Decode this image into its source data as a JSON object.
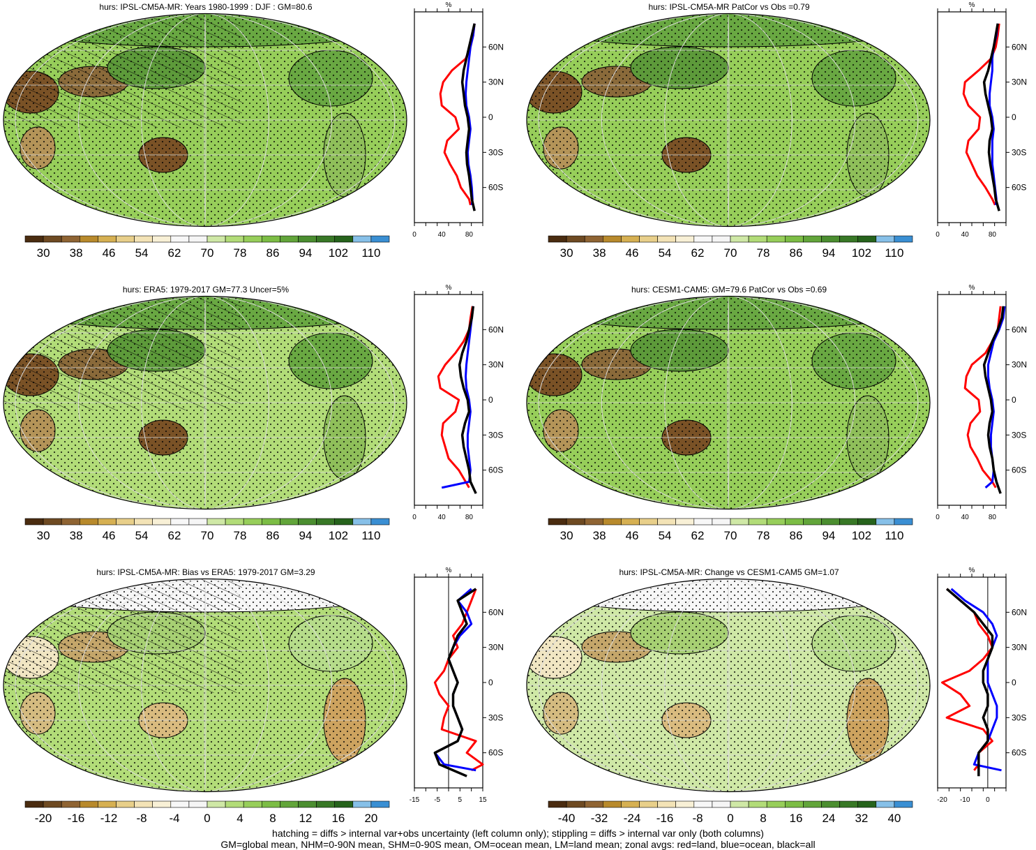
{
  "colors": {
    "abs_scale": [
      "#4a2c10",
      "#6e4a22",
      "#8f6433",
      "#b88a2c",
      "#d6b052",
      "#e8cf8a",
      "#f3e3b6",
      "#f8f0d6",
      "#f7f7f7",
      "#f5f5f5",
      "#cfe8a6",
      "#b2dc78",
      "#97ce5a",
      "#7cbd45",
      "#62a53a",
      "#4b8e30",
      "#387826",
      "#26631c",
      "#87c0e8",
      "#3a8fd3"
    ],
    "diff_scale": [
      "#4a2c10",
      "#6e4a22",
      "#8f6433",
      "#b88a2c",
      "#d6b052",
      "#e8cf8a",
      "#f3e3b6",
      "#f8f0d6",
      "#f7f7f7",
      "#f5f5f5",
      "#cfe8a6",
      "#b2dc78",
      "#97ce5a",
      "#7cbd45",
      "#62a53a",
      "#4b8e30",
      "#387826",
      "#26631c",
      "#87c0e8",
      "#3a8fd3"
    ],
    "land": "#ff0000",
    "ocean": "#0000ff",
    "all": "#000000"
  },
  "footer": {
    "line1": "hatching = diffs > internal var+obs uncertainty (left column only); stippling = diffs > internal var only (both columns)",
    "line2": "GM=global mean, NHM=0-90N mean, SHM=0-90S mean, OM=ocean mean, LM=land mean; zonal avgs: red=land, blue=ocean, black=all"
  },
  "chart_data": [
    {
      "type": "heatmap",
      "title": "hurs: IPSL-CM5A-MR: Years 1980-1999 : DJF : GM=80.6",
      "colorbar_ticks": [
        "30",
        "38",
        "46",
        "54",
        "62",
        "70",
        "78",
        "86",
        "94",
        "102",
        "110"
      ],
      "colorbar_range": [
        26,
        114
      ],
      "map_base": 80,
      "zonal": {
        "unit": "%",
        "xlim": [
          0,
          100
        ],
        "xticks": [
          "0",
          "40",
          "80"
        ],
        "lat_ticks": [
          "60N",
          "30N",
          "0",
          "30S",
          "60S"
        ],
        "series": [
          {
            "color": "land",
            "lat": [
              80,
              70,
              60,
              50,
              40,
              30,
              20,
              10,
              0,
              -10,
              -20,
              -30,
              -40,
              -50,
              -60,
              -70,
              -75
            ],
            "values": [
              88,
              86,
              82,
              75,
              55,
              42,
              38,
              40,
              60,
              65,
              48,
              44,
              52,
              62,
              68,
              80,
              82
            ]
          },
          {
            "color": "ocean",
            "lat": [
              80,
              70,
              60,
              50,
              40,
              30,
              20,
              10,
              0,
              -10,
              -20,
              -30,
              -40,
              -50,
              -60,
              -70,
              -75
            ],
            "values": [
              88,
              86,
              82,
              80,
              78,
              76,
              75,
              76,
              80,
              82,
              80,
              78,
              79,
              82,
              84,
              85,
              84
            ]
          },
          {
            "color": "all",
            "lat": [
              80,
              70,
              60,
              50,
              40,
              30,
              20,
              10,
              0,
              -10,
              -20,
              -30,
              -40,
              -50,
              -60,
              -70,
              -80
            ],
            "values": [
              88,
              84,
              80,
              76,
              72,
              70,
              72,
              74,
              78,
              80,
              78,
              76,
              77,
              80,
              82,
              84,
              88
            ]
          }
        ]
      }
    },
    {
      "type": "heatmap",
      "title": "hurs: IPSL-CM5A-MR PatCor vs Obs =0.79",
      "colorbar_ticks": [
        "30",
        "38",
        "46",
        "54",
        "62",
        "70",
        "78",
        "86",
        "94",
        "102",
        "110"
      ],
      "colorbar_range": [
        26,
        114
      ],
      "map_base": 80,
      "zonal": {
        "unit": "%",
        "xlim": [
          0,
          100
        ],
        "xticks": [
          "0",
          "40",
          "80"
        ],
        "lat_ticks": [
          "60N",
          "30N",
          "0",
          "30S",
          "60S"
        ],
        "series": [
          {
            "color": "land",
            "lat": [
              80,
              70,
              60,
              50,
              40,
              30,
              20,
              10,
              0,
              -10,
              -20,
              -30,
              -40,
              -50,
              -60,
              -70,
              -75
            ],
            "values": [
              90,
              88,
              85,
              78,
              60,
              40,
              38,
              45,
              62,
              60,
              45,
              42,
              50,
              58,
              70,
              80,
              84
            ]
          },
          {
            "color": "ocean",
            "lat": [
              80,
              70,
              60,
              50,
              40,
              30,
              20,
              10,
              0,
              -10,
              -20,
              -30,
              -40,
              -50,
              -60,
              -70,
              -75
            ],
            "values": [
              88,
              86,
              82,
              80,
              80,
              78,
              76,
              76,
              80,
              82,
              80,
              80,
              80,
              82,
              84,
              86,
              85
            ]
          },
          {
            "color": "all",
            "lat": [
              80,
              70,
              60,
              50,
              40,
              30,
              20,
              10,
              0,
              -10,
              -20,
              -30,
              -40,
              -50,
              -60,
              -70,
              -80
            ],
            "values": [
              88,
              85,
              82,
              78,
              74,
              68,
              70,
              74,
              78,
              80,
              76,
              75,
              77,
              80,
              83,
              85,
              90
            ]
          }
        ]
      }
    },
    {
      "type": "heatmap",
      "title": "hurs: ERA5: 1979-2017 GM=77.3 Uncer=5%",
      "colorbar_ticks": [
        "30",
        "38",
        "46",
        "54",
        "62",
        "70",
        "78",
        "86",
        "94",
        "102",
        "110"
      ],
      "colorbar_range": [
        26,
        114
      ],
      "map_base": 77,
      "zonal": {
        "unit": "%",
        "xlim": [
          0,
          100
        ],
        "xticks": [
          "0",
          "40",
          "80"
        ],
        "lat_ticks": [
          "60N",
          "30N",
          "0",
          "30S",
          "60S"
        ],
        "series": [
          {
            "color": "land",
            "lat": [
              80,
              70,
              60,
              50,
              40,
              30,
              20,
              10,
              0,
              -10,
              -20,
              -30,
              -40,
              -50,
              -60,
              -70,
              -75
            ],
            "values": [
              85,
              82,
              80,
              72,
              60,
              45,
              35,
              38,
              65,
              60,
              42,
              40,
              45,
              50,
              65,
              75,
              80
            ]
          },
          {
            "color": "ocean",
            "lat": [
              80,
              70,
              60,
              50,
              40,
              30,
              20,
              10,
              0,
              -10,
              -20,
              -30,
              -40,
              -50,
              -60,
              -70,
              -75
            ],
            "values": [
              86,
              84,
              82,
              80,
              78,
              76,
              75,
              76,
              80,
              82,
              80,
              78,
              78,
              80,
              82,
              80,
              40
            ]
          },
          {
            "color": "all",
            "lat": [
              80,
              70,
              60,
              50,
              40,
              30,
              20,
              10,
              0,
              -10,
              -20,
              -30,
              -40,
              -50,
              -60,
              -70,
              -80
            ],
            "values": [
              86,
              84,
              80,
              76,
              70,
              66,
              68,
              72,
              78,
              80,
              74,
              70,
              72,
              76,
              80,
              82,
              90
            ]
          }
        ]
      }
    },
    {
      "type": "heatmap",
      "title": "hurs: CESM1-CAM5: GM=79.6 PatCor vs Obs =0.69",
      "colorbar_ticks": [
        "30",
        "38",
        "46",
        "54",
        "62",
        "70",
        "78",
        "86",
        "94",
        "102",
        "110"
      ],
      "colorbar_range": [
        26,
        114
      ],
      "map_base": 80,
      "zonal": {
        "unit": "%",
        "xlim": [
          0,
          100
        ],
        "xticks": [
          "0",
          "40",
          "80"
        ],
        "lat_ticks": [
          "60N",
          "30N",
          "0",
          "30S",
          "60S"
        ],
        "series": [
          {
            "color": "land",
            "lat": [
              80,
              70,
              60,
              50,
              40,
              30,
              20,
              10,
              0,
              -10,
              -20,
              -30,
              -40,
              -50,
              -60,
              -70,
              -75
            ],
            "values": [
              92,
              90,
              88,
              80,
              70,
              50,
              42,
              40,
              60,
              62,
              48,
              44,
              48,
              58,
              66,
              80,
              85
            ]
          },
          {
            "color": "ocean",
            "lat": [
              80,
              70,
              60,
              50,
              40,
              30,
              20,
              10,
              0,
              -10,
              -20,
              -30,
              -40,
              -50,
              -60,
              -70,
              -75
            ],
            "values": [
              98,
              96,
              90,
              82,
              78,
              74,
              74,
              76,
              80,
              82,
              80,
              78,
              78,
              80,
              82,
              80,
              70
            ]
          },
          {
            "color": "all",
            "lat": [
              80,
              70,
              60,
              50,
              40,
              30,
              20,
              10,
              0,
              -10,
              -20,
              -30,
              -40,
              -50,
              -60,
              -70,
              -80
            ],
            "values": [
              96,
              94,
              88,
              80,
              74,
              68,
              70,
              74,
              78,
              80,
              76,
              74,
              76,
              80,
              82,
              86,
              92
            ]
          }
        ]
      }
    },
    {
      "type": "heatmap",
      "title": "hurs: IPSL-CM5A-MR: Bias vs ERA5: 1979-2017 GM=3.29",
      "colorbar_ticks": [
        "-20",
        "-16",
        "-12",
        "-8",
        "-4",
        "0",
        "4",
        "8",
        "12",
        "16",
        "20"
      ],
      "colorbar_range": [
        -22,
        22
      ],
      "map_base": 3,
      "zonal": {
        "unit": "%",
        "xlim": [
          -15,
          15
        ],
        "xticks": [
          "-15",
          "-5",
          "5",
          "15"
        ],
        "lat_ticks": [
          "60N",
          "30N",
          "0",
          "30S",
          "60S"
        ],
        "series": [
          {
            "color": "land",
            "lat": [
              80,
              70,
              60,
              50,
              40,
              30,
              20,
              10,
              0,
              -10,
              -20,
              -30,
              -40,
              -50,
              -60,
              -70,
              -75
            ],
            "values": [
              12,
              10,
              8,
              6,
              2,
              4,
              0,
              -2,
              -6,
              -4,
              0,
              -2,
              -3,
              12,
              8,
              15,
              10
            ]
          },
          {
            "color": "ocean",
            "lat": [
              80,
              70,
              60,
              50,
              40,
              30,
              20,
              10,
              0,
              -10,
              -20,
              -30,
              -40,
              -50,
              -60,
              -70,
              -75
            ],
            "values": [
              10,
              4,
              8,
              10,
              5,
              2,
              0,
              2,
              4,
              2,
              2,
              4,
              6,
              4,
              -6,
              -2,
              12
            ]
          },
          {
            "color": "all",
            "lat": [
              80,
              70,
              60,
              50,
              40,
              30,
              20,
              10,
              0,
              -10,
              -20,
              -30,
              -40,
              -50,
              -60,
              -70,
              -80
            ],
            "values": [
              12,
              4,
              6,
              8,
              4,
              2,
              0,
              2,
              4,
              2,
              2,
              4,
              6,
              4,
              -6,
              -4,
              8
            ]
          }
        ]
      }
    },
    {
      "type": "heatmap",
      "title": "hurs: IPSL-CM5A-MR: Change vs CESM1-CAM5 GM=1.07",
      "colorbar_ticks": [
        "-40",
        "-32",
        "-24",
        "-16",
        "-8",
        "0",
        "8",
        "16",
        "24",
        "32",
        "40"
      ],
      "colorbar_range": [
        -44,
        44
      ],
      "map_base": 1,
      "zonal": {
        "unit": "%",
        "xlim": [
          -22,
          8
        ],
        "xticks": [
          "-20",
          "-10",
          "0"
        ],
        "lat_ticks": [
          "60N",
          "30N",
          "0",
          "30S",
          "60S"
        ],
        "series": [
          {
            "color": "land",
            "lat": [
              80,
              70,
              60,
              50,
              40,
              30,
              20,
              10,
              0,
              -10,
              -20,
              -30,
              -40,
              -50,
              -60,
              -70,
              -75
            ],
            "values": [
              -18,
              -12,
              -6,
              -4,
              0,
              2,
              -2,
              -8,
              -20,
              -12,
              -8,
              -18,
              -2,
              2,
              -4,
              -4,
              -6
            ]
          },
          {
            "color": "ocean",
            "lat": [
              80,
              70,
              60,
              50,
              40,
              30,
              20,
              10,
              0,
              -10,
              -20,
              -30,
              -40,
              -50,
              -60,
              -70,
              -75
            ],
            "values": [
              -16,
              -10,
              -2,
              2,
              4,
              2,
              0,
              0,
              0,
              2,
              4,
              4,
              2,
              0,
              -4,
              -6,
              6
            ]
          },
          {
            "color": "all",
            "lat": [
              80,
              70,
              60,
              50,
              40,
              30,
              20,
              10,
              0,
              -10,
              -20,
              -30,
              -40,
              -50,
              -60,
              -70,
              -80
            ],
            "values": [
              -18,
              -12,
              -6,
              -2,
              2,
              2,
              0,
              -2,
              -2,
              0,
              0,
              -2,
              0,
              0,
              -4,
              -4,
              -4
            ]
          }
        ]
      }
    }
  ]
}
